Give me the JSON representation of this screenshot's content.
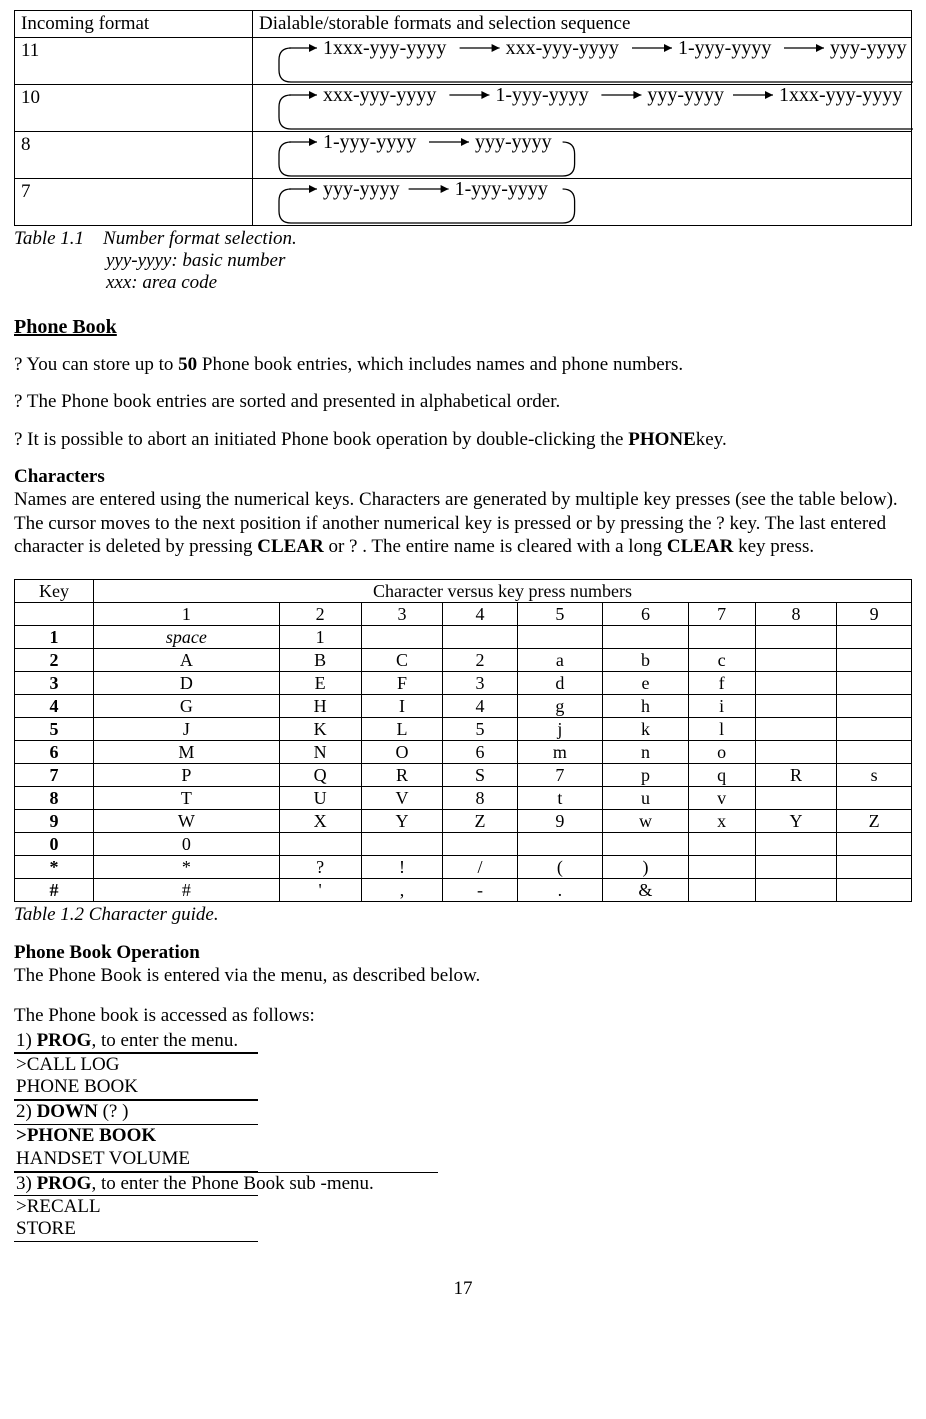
{
  "format_table": {
    "h_left": "Incoming format",
    "h_right": "Dialable/storable formats and selection sequence",
    "rows": [
      {
        "fmt": "11",
        "seq": [
          "1xxx-yyy-yyyy",
          "xxx-yyy-yyyy",
          "1-yyy-yyyy",
          "yyy-yyyy"
        ]
      },
      {
        "fmt": "10",
        "seq": [
          "xxx-yyy-yyyy",
          "1-yyy-yyyy",
          "yyy-yyyy",
          "1xxx-yyy-yyyy"
        ]
      },
      {
        "fmt": "8",
        "seq": [
          "1-yyy-yyyy",
          "yyy-yyyy"
        ]
      },
      {
        "fmt": "7",
        "seq": [
          "yyy-yyyy",
          "1-yyy-yyyy"
        ]
      }
    ]
  },
  "caption1_label": "Table 1.1",
  "caption1_text": "Number format selection.",
  "caption1_sub1": "yyy-yyyy: basic number",
  "caption1_sub2": "xxx: area code",
  "phone_book_h": "Phone Book",
  "bullet1_a": "?\tYou can store up to ",
  "bullet1_b": "50",
  "bullet1_c": " Phone book entries, which includes names and phone numbers.",
  "bullet2": "?\tThe Phone book entries are sorted and presented in alphabetical order.",
  "bullet3_a": "?\tIt is possible to abort an initiated Phone book operation by double-clicking the ",
  "bullet3_b": "PHONE",
  "bullet3_c": "key.",
  "chars_h": "Characters",
  "chars_p1": "Names are entered using the numerical keys. Characters are generated by multiple key presses (see the table below). The cursor moves to the next position if another numerical key is pressed or by pressing the ?   key. The last entered character is deleted by pressing ",
  "chars_p2": "CLEAR",
  "chars_p3": " or ?  . The entire name is cleared with a long ",
  "chars_p4": "CLEAR",
  "chars_p5": " key press.",
  "char_table": {
    "key_h": "Key",
    "span_h": "Character versus key press numbers",
    "cols": [
      "1",
      "2",
      "3",
      "4",
      "5",
      "6",
      "7",
      "8",
      "9"
    ],
    "rows": [
      {
        "k": "1",
        "c": [
          "space",
          "1",
          "",
          "",
          "",
          "",
          "",
          "",
          ""
        ]
      },
      {
        "k": "2",
        "c": [
          "A",
          "B",
          "C",
          "2",
          "a",
          "b",
          "c",
          "",
          ""
        ]
      },
      {
        "k": "3",
        "c": [
          "D",
          "E",
          "F",
          "3",
          "d",
          "e",
          "f",
          "",
          ""
        ]
      },
      {
        "k": "4",
        "c": [
          "G",
          "H",
          "I",
          "4",
          "g",
          "h",
          "i",
          "",
          ""
        ]
      },
      {
        "k": "5",
        "c": [
          "J",
          "K",
          "L",
          "5",
          "j",
          "k",
          "l",
          "",
          ""
        ]
      },
      {
        "k": "6",
        "c": [
          "M",
          "N",
          "O",
          "6",
          "m",
          "n",
          "o",
          "",
          ""
        ]
      },
      {
        "k": "7",
        "c": [
          "P",
          "Q",
          "R",
          "S",
          "7",
          "p",
          "q",
          "R",
          "s"
        ]
      },
      {
        "k": "8",
        "c": [
          "T",
          "U",
          "V",
          "8",
          "t",
          "u",
          "v",
          "",
          ""
        ]
      },
      {
        "k": "9",
        "c": [
          "W",
          "X",
          "Y",
          "Z",
          "9",
          "w",
          "x",
          "Y",
          "Z"
        ]
      },
      {
        "k": "0",
        "c": [
          "0",
          "",
          "",
          "",
          "",
          "",
          "",
          "",
          ""
        ]
      },
      {
        "k": "*",
        "c": [
          "*",
          "?",
          "!",
          "/",
          "(",
          ")",
          "",
          "",
          ""
        ]
      },
      {
        "k": "#",
        "c": [
          "#",
          "'",
          ",",
          "-",
          ".",
          "&",
          "",
          "",
          ""
        ]
      }
    ]
  },
  "caption2": "Table 1.2 Character guide.",
  "op_h": "Phone Book Operation",
  "op_p": "The Phone Book is entered via the menu, as described below.",
  "op_intro": "The Phone book is accessed as follows:",
  "step1_a": "1) ",
  "step1_b": "PROG",
  "step1_c": ", to enter the menu.",
  "menu1_l1": ">CALL LOG",
  "menu1_l2": " PHONE BOOK",
  "step2_a": " 2)  ",
  "step2_b": "DOWN",
  "step2_c": " (?  )",
  "menu2_l1": ">PHONE BOOK",
  "menu2_l2": " HANDSET VOLUME",
  "step3_a": " 3) ",
  "step3_b": "PROG",
  "step3_c": ", to enter the Phone Book sub -menu.",
  "menu3_l1": ">RECALL",
  "menu3_l2": " STORE",
  "page_num": "17",
  "svg": {
    "stroke": "#000",
    "text_size": 20
  }
}
